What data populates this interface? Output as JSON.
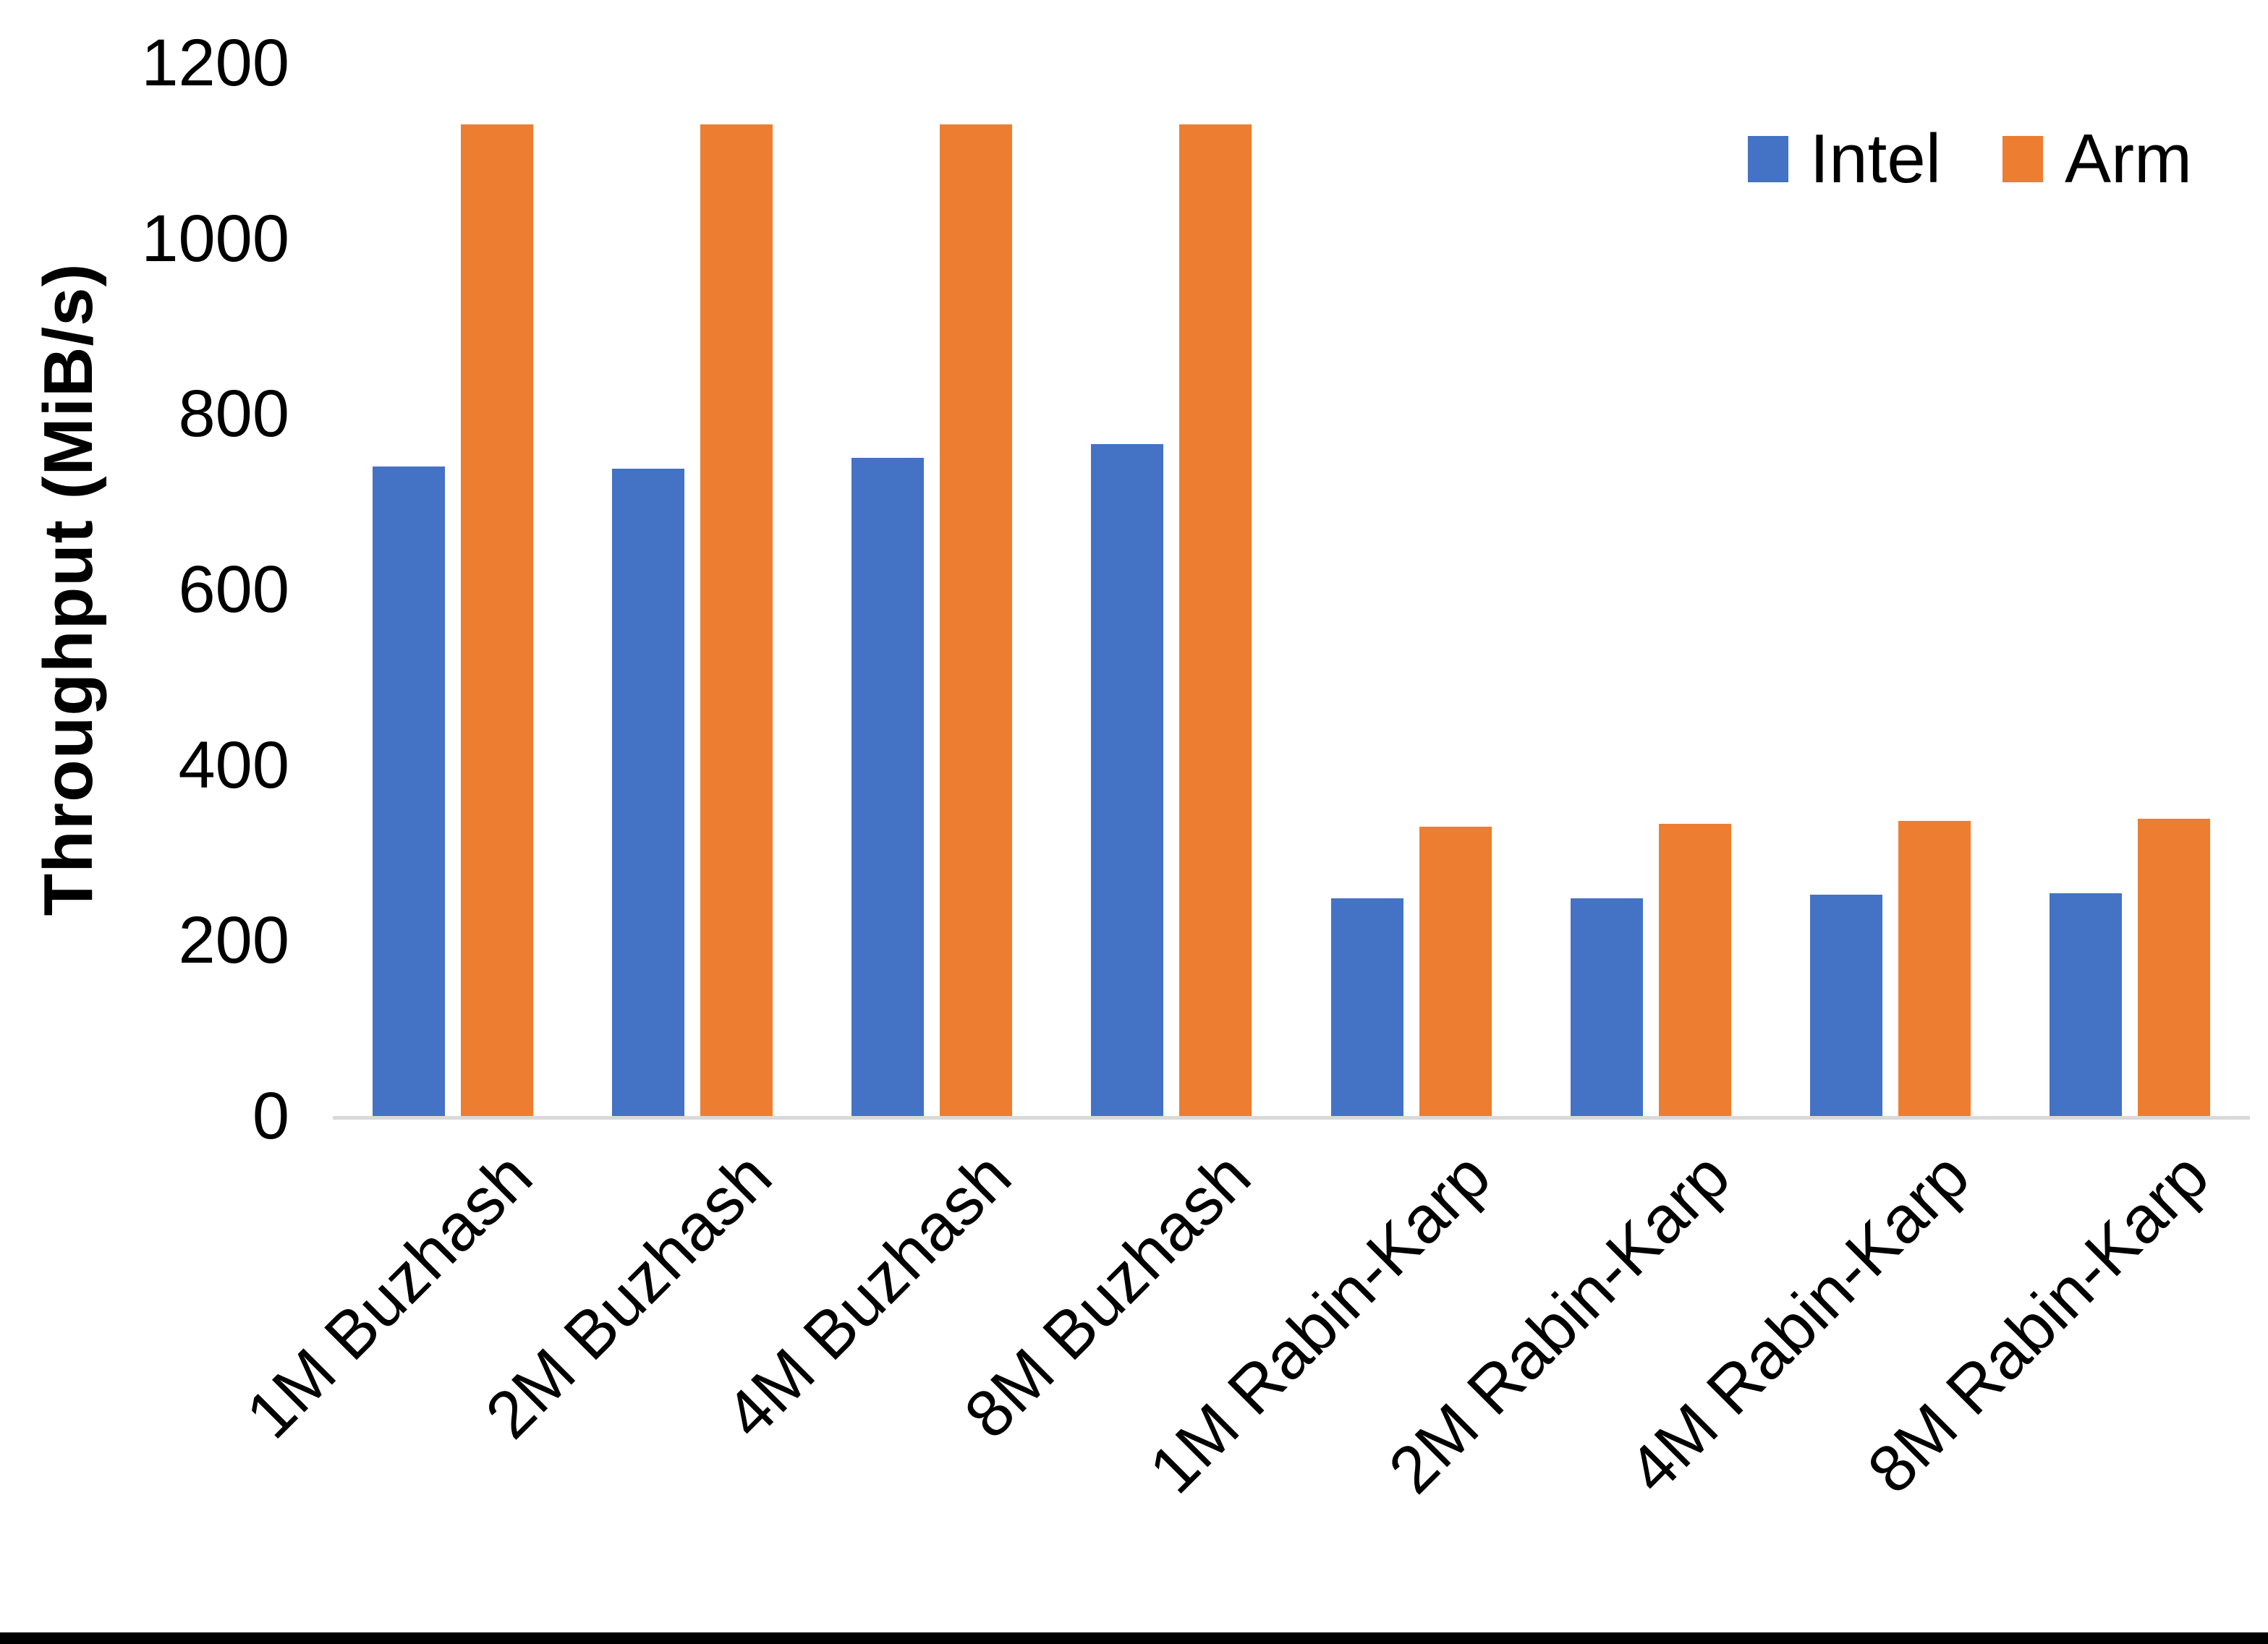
{
  "chart_data": {
    "type": "bar",
    "title": "",
    "xlabel": "",
    "ylabel": "Throughput (MiB/s)",
    "categories": [
      "1M Buzhash",
      "2M Buzhash",
      "4M Buzhash",
      "8M Buzhash",
      "1M Rabin-Karp",
      "2M Rabin-Karp",
      "4M Rabin-Karp",
      "8M Rabin-Karp"
    ],
    "series": [
      {
        "name": "Intel",
        "color": "#4472C4",
        "values": [
          740,
          738,
          750,
          766,
          248,
          248,
          252,
          254
        ]
      },
      {
        "name": "Arm",
        "color": "#ED7D31",
        "values": [
          1130,
          1130,
          1130,
          1130,
          330,
          333,
          336,
          339
        ]
      }
    ],
    "ylim": [
      0,
      1200
    ],
    "yticks": [
      0,
      200,
      400,
      600,
      800,
      1000,
      1200
    ],
    "ytick_labels": [
      "0",
      "200",
      "400",
      "600",
      "800",
      "1000",
      "1200"
    ],
    "legend_position": "top-right",
    "grid": false,
    "axis_line_color": "#D9D9D9",
    "text_color": "#000000",
    "background_color": "#FFFFFF",
    "bottom_border_color": "#000000"
  }
}
